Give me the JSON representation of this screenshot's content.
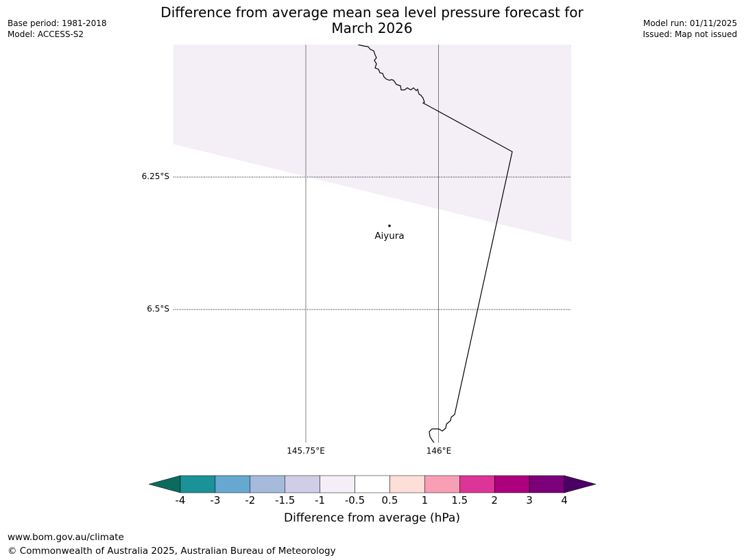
{
  "header": {
    "title_line1": "Difference from average mean sea level pressure forecast for",
    "title_line2": "March 2026",
    "base_period": "Base period: 1981-2018",
    "model": "Model: ACCESS-S2",
    "model_run": "Model run: 01/11/2025",
    "issued": "Issued: Map not issued"
  },
  "map": {
    "lat_labels": [
      "6.25°S",
      "6.5°S"
    ],
    "lon_labels": [
      "145.75°E",
      "146°E"
    ],
    "place": {
      "name": "Aiyura"
    },
    "shaded_region_color": "#f4eef6",
    "coastline_color": "#000000",
    "gridline_color": "#808080"
  },
  "colorbar": {
    "title": "Difference from average (hPa)",
    "ticks": [
      "-4",
      "-3",
      "-2",
      "-1.5",
      "-1",
      "-0.5",
      "0.5",
      "1",
      "1.5",
      "2",
      "3",
      "4"
    ],
    "under_color": "#0b6b5f",
    "over_color": "#4b0064",
    "colors": [
      "#1a9298",
      "#66a8d0",
      "#a6bbdb",
      "#d0cde6",
      "#f4eef6",
      "#ffffff",
      "#fdded9",
      "#f89fb6",
      "#dc3597",
      "#ac007d",
      "#7b007a"
    ]
  },
  "footer": {
    "url": "www.bom.gov.au/climate",
    "copyright": "© Commonwealth of Australia 2025, Australian Bureau of Meteorology"
  }
}
